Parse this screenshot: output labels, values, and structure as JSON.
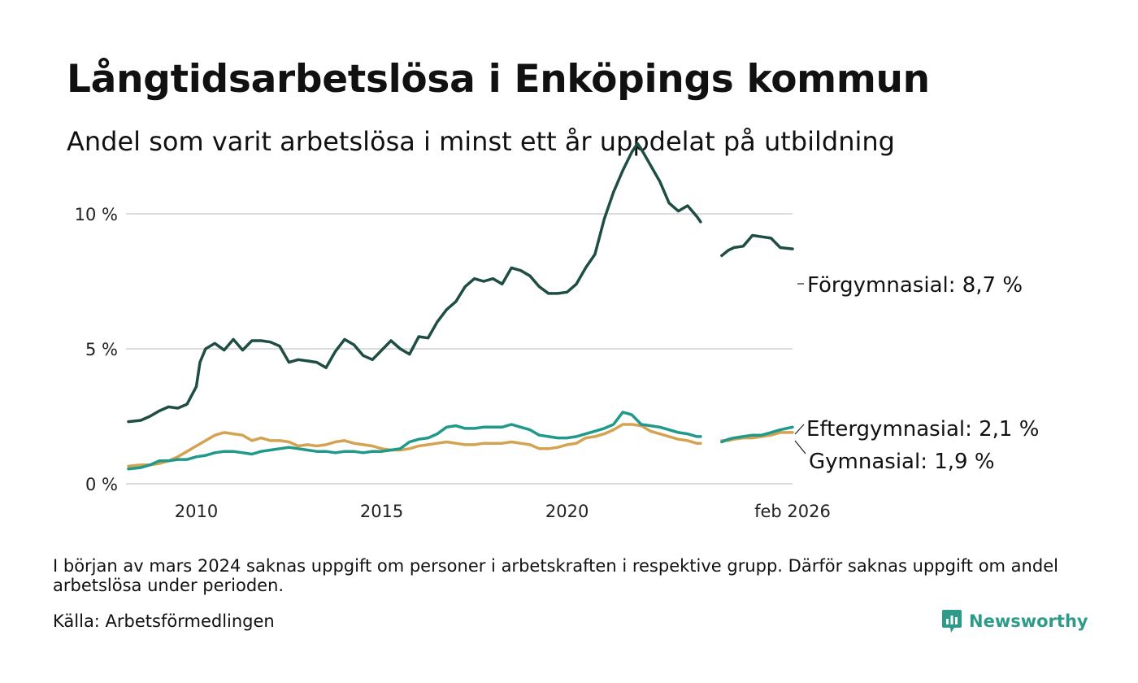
{
  "title": "Långtidsarbetslösa i Enköpings kommun",
  "subtitle": "Andel som varit arbetslösa i minst ett år uppdelat på utbildning",
  "footnote": "I början av mars 2024 saknas uppgift om personer i arbetskraften i respektive grupp. Därför saknas uppgift om andel arbetslösa under perioden.",
  "source": "Källa: Arbetsförmedlingen",
  "brand": "Newsworthy",
  "chart_data": {
    "type": "line",
    "title": "Långtidsarbetslösa i Enköpings kommun",
    "xlabel": "",
    "ylabel": "",
    "ylim": [
      0,
      12.8
    ],
    "xlim": [
      2008.17,
      2026.08
    ],
    "y_ticks": [
      0,
      5,
      10
    ],
    "y_tick_labels": [
      "0 %",
      "5 %",
      "10 %"
    ],
    "x_ticks": [
      2010,
      2015,
      2020,
      2026.08
    ],
    "x_tick_labels": [
      "2010",
      "2015",
      "2020",
      "feb 2026"
    ],
    "gap": {
      "from": 2023.75,
      "to": 2024.17,
      "description": "saknas uppgift"
    },
    "series": [
      {
        "name": "Förgymnasial",
        "end_label": "Förgymnasial: 8,7 %",
        "color": "#1e4d44",
        "points": [
          [
            2008.17,
            2.3
          ],
          [
            2008.5,
            2.35
          ],
          [
            2008.75,
            2.5
          ],
          [
            2009.0,
            2.7
          ],
          [
            2009.25,
            2.85
          ],
          [
            2009.5,
            2.8
          ],
          [
            2009.75,
            2.95
          ],
          [
            2010.0,
            3.6
          ],
          [
            2010.1,
            4.5
          ],
          [
            2010.25,
            5.0
          ],
          [
            2010.5,
            5.2
          ],
          [
            2010.75,
            4.95
          ],
          [
            2011.0,
            5.35
          ],
          [
            2011.25,
            4.95
          ],
          [
            2011.5,
            5.3
          ],
          [
            2011.75,
            5.3
          ],
          [
            2012.0,
            5.25
          ],
          [
            2012.25,
            5.1
          ],
          [
            2012.5,
            4.5
          ],
          [
            2012.75,
            4.6
          ],
          [
            2013.0,
            4.55
          ],
          [
            2013.25,
            4.5
          ],
          [
            2013.5,
            4.3
          ],
          [
            2013.75,
            4.9
          ],
          [
            2014.0,
            5.35
          ],
          [
            2014.25,
            5.15
          ],
          [
            2014.5,
            4.75
          ],
          [
            2014.75,
            4.6
          ],
          [
            2015.0,
            4.95
          ],
          [
            2015.25,
            5.3
          ],
          [
            2015.5,
            5.0
          ],
          [
            2015.75,
            4.8
          ],
          [
            2016.0,
            5.45
          ],
          [
            2016.25,
            5.4
          ],
          [
            2016.5,
            6.0
          ],
          [
            2016.75,
            6.45
          ],
          [
            2017.0,
            6.75
          ],
          [
            2017.25,
            7.3
          ],
          [
            2017.5,
            7.6
          ],
          [
            2017.75,
            7.5
          ],
          [
            2018.0,
            7.6
          ],
          [
            2018.25,
            7.4
          ],
          [
            2018.5,
            8.0
          ],
          [
            2018.75,
            7.9
          ],
          [
            2019.0,
            7.7
          ],
          [
            2019.25,
            7.3
          ],
          [
            2019.5,
            7.05
          ],
          [
            2019.75,
            7.05
          ],
          [
            2020.0,
            7.1
          ],
          [
            2020.25,
            7.4
          ],
          [
            2020.5,
            8.0
          ],
          [
            2020.75,
            8.5
          ],
          [
            2021.0,
            9.8
          ],
          [
            2021.25,
            10.8
          ],
          [
            2021.5,
            11.6
          ],
          [
            2021.75,
            12.3
          ],
          [
            2021.9,
            12.6
          ],
          [
            2022.0,
            12.4
          ],
          [
            2022.25,
            11.8
          ],
          [
            2022.5,
            11.2
          ],
          [
            2022.75,
            10.4
          ],
          [
            2023.0,
            10.1
          ],
          [
            2023.25,
            10.3
          ],
          [
            2023.5,
            9.9
          ],
          [
            2023.6,
            9.7
          ]
        ],
        "points_after_gap": [
          [
            2024.17,
            8.45
          ],
          [
            2024.35,
            8.65
          ],
          [
            2024.5,
            8.75
          ],
          [
            2024.75,
            8.8
          ],
          [
            2025.0,
            9.2
          ],
          [
            2025.25,
            9.15
          ],
          [
            2025.5,
            9.1
          ],
          [
            2025.75,
            8.75
          ],
          [
            2026.08,
            8.7
          ]
        ]
      },
      {
        "name": "Eftergymnasial",
        "end_label": "Eftergymnasial: 2,1 %",
        "color": "#1f9a8a",
        "points": [
          [
            2008.17,
            0.55
          ],
          [
            2008.5,
            0.6
          ],
          [
            2008.75,
            0.7
          ],
          [
            2009.0,
            0.85
          ],
          [
            2009.25,
            0.85
          ],
          [
            2009.5,
            0.9
          ],
          [
            2009.75,
            0.9
          ],
          [
            2010.0,
            1.0
          ],
          [
            2010.25,
            1.05
          ],
          [
            2010.5,
            1.15
          ],
          [
            2010.75,
            1.2
          ],
          [
            2011.0,
            1.2
          ],
          [
            2011.25,
            1.15
          ],
          [
            2011.5,
            1.1
          ],
          [
            2011.75,
            1.2
          ],
          [
            2012.0,
            1.25
          ],
          [
            2012.25,
            1.3
          ],
          [
            2012.5,
            1.35
          ],
          [
            2012.75,
            1.3
          ],
          [
            2013.0,
            1.25
          ],
          [
            2013.25,
            1.2
          ],
          [
            2013.5,
            1.2
          ],
          [
            2013.75,
            1.15
          ],
          [
            2014.0,
            1.2
          ],
          [
            2014.25,
            1.2
          ],
          [
            2014.5,
            1.15
          ],
          [
            2014.75,
            1.2
          ],
          [
            2015.0,
            1.2
          ],
          [
            2015.25,
            1.25
          ],
          [
            2015.5,
            1.3
          ],
          [
            2015.75,
            1.55
          ],
          [
            2016.0,
            1.65
          ],
          [
            2016.25,
            1.7
          ],
          [
            2016.5,
            1.85
          ],
          [
            2016.75,
            2.1
          ],
          [
            2017.0,
            2.15
          ],
          [
            2017.25,
            2.05
          ],
          [
            2017.5,
            2.05
          ],
          [
            2017.75,
            2.1
          ],
          [
            2018.0,
            2.1
          ],
          [
            2018.25,
            2.1
          ],
          [
            2018.5,
            2.2
          ],
          [
            2018.75,
            2.1
          ],
          [
            2019.0,
            2.0
          ],
          [
            2019.25,
            1.8
          ],
          [
            2019.5,
            1.75
          ],
          [
            2019.75,
            1.7
          ],
          [
            2020.0,
            1.7
          ],
          [
            2020.25,
            1.75
          ],
          [
            2020.5,
            1.85
          ],
          [
            2020.75,
            1.95
          ],
          [
            2021.0,
            2.05
          ],
          [
            2021.25,
            2.2
          ],
          [
            2021.5,
            2.65
          ],
          [
            2021.65,
            2.6
          ],
          [
            2021.75,
            2.55
          ],
          [
            2022.0,
            2.2
          ],
          [
            2022.25,
            2.15
          ],
          [
            2022.5,
            2.1
          ],
          [
            2022.75,
            2.0
          ],
          [
            2023.0,
            1.9
          ],
          [
            2023.25,
            1.85
          ],
          [
            2023.5,
            1.75
          ],
          [
            2023.6,
            1.75
          ]
        ],
        "points_after_gap": [
          [
            2024.17,
            1.55
          ],
          [
            2024.35,
            1.65
          ],
          [
            2024.5,
            1.7
          ],
          [
            2024.75,
            1.75
          ],
          [
            2025.0,
            1.8
          ],
          [
            2025.25,
            1.8
          ],
          [
            2025.5,
            1.9
          ],
          [
            2025.75,
            2.0
          ],
          [
            2026.08,
            2.1
          ]
        ]
      },
      {
        "name": "Gymnasial",
        "end_label": "Gymnasial: 1,9 %",
        "color": "#d4a351",
        "points": [
          [
            2008.17,
            0.65
          ],
          [
            2008.5,
            0.7
          ],
          [
            2008.75,
            0.7
          ],
          [
            2009.0,
            0.75
          ],
          [
            2009.25,
            0.85
          ],
          [
            2009.5,
            1.0
          ],
          [
            2009.75,
            1.2
          ],
          [
            2010.0,
            1.4
          ],
          [
            2010.25,
            1.6
          ],
          [
            2010.5,
            1.8
          ],
          [
            2010.75,
            1.9
          ],
          [
            2011.0,
            1.85
          ],
          [
            2011.25,
            1.8
          ],
          [
            2011.5,
            1.6
          ],
          [
            2011.75,
            1.7
          ],
          [
            2012.0,
            1.6
          ],
          [
            2012.25,
            1.6
          ],
          [
            2012.5,
            1.55
          ],
          [
            2012.75,
            1.4
          ],
          [
            2013.0,
            1.45
          ],
          [
            2013.25,
            1.4
          ],
          [
            2013.5,
            1.45
          ],
          [
            2013.75,
            1.55
          ],
          [
            2014.0,
            1.6
          ],
          [
            2014.25,
            1.5
          ],
          [
            2014.5,
            1.45
          ],
          [
            2014.75,
            1.4
          ],
          [
            2015.0,
            1.3
          ],
          [
            2015.25,
            1.25
          ],
          [
            2015.5,
            1.25
          ],
          [
            2015.75,
            1.3
          ],
          [
            2016.0,
            1.4
          ],
          [
            2016.25,
            1.45
          ],
          [
            2016.5,
            1.5
          ],
          [
            2016.75,
            1.55
          ],
          [
            2017.0,
            1.5
          ],
          [
            2017.25,
            1.45
          ],
          [
            2017.5,
            1.45
          ],
          [
            2017.75,
            1.5
          ],
          [
            2018.0,
            1.5
          ],
          [
            2018.25,
            1.5
          ],
          [
            2018.5,
            1.55
          ],
          [
            2018.75,
            1.5
          ],
          [
            2019.0,
            1.45
          ],
          [
            2019.25,
            1.3
          ],
          [
            2019.5,
            1.3
          ],
          [
            2019.75,
            1.35
          ],
          [
            2020.0,
            1.45
          ],
          [
            2020.25,
            1.5
          ],
          [
            2020.5,
            1.7
          ],
          [
            2020.75,
            1.75
          ],
          [
            2021.0,
            1.85
          ],
          [
            2021.25,
            2.0
          ],
          [
            2021.5,
            2.2
          ],
          [
            2021.75,
            2.2
          ],
          [
            2022.0,
            2.15
          ],
          [
            2022.25,
            1.95
          ],
          [
            2022.5,
            1.85
          ],
          [
            2022.75,
            1.75
          ],
          [
            2023.0,
            1.65
          ],
          [
            2023.25,
            1.6
          ],
          [
            2023.5,
            1.5
          ],
          [
            2023.6,
            1.5
          ]
        ],
        "points_after_gap": [
          [
            2024.17,
            1.6
          ],
          [
            2024.35,
            1.6
          ],
          [
            2024.5,
            1.65
          ],
          [
            2024.75,
            1.7
          ],
          [
            2025.0,
            1.7
          ],
          [
            2025.25,
            1.75
          ],
          [
            2025.5,
            1.8
          ],
          [
            2025.75,
            1.9
          ],
          [
            2026.08,
            1.9
          ]
        ]
      }
    ]
  }
}
